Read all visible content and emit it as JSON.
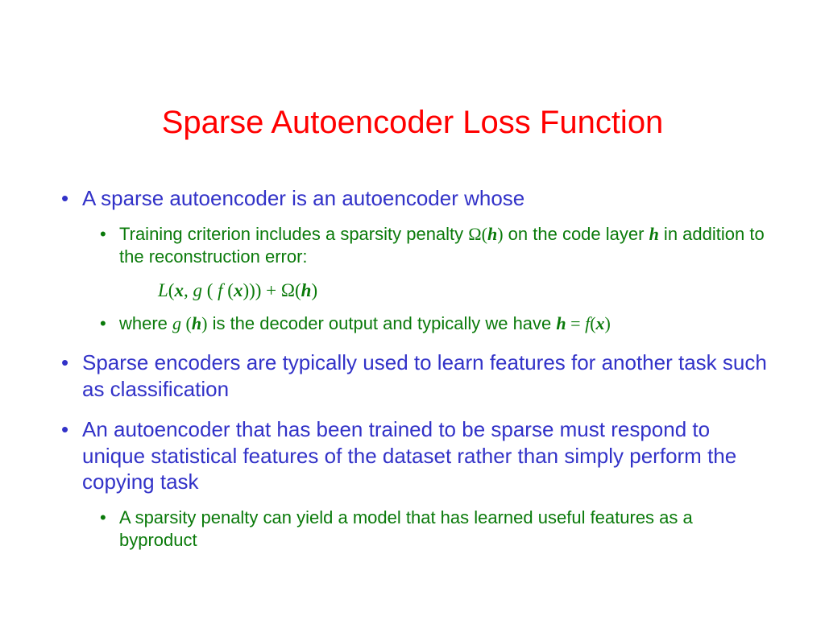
{
  "colors": {
    "title": "#ff0000",
    "blue": "#3232c8",
    "green": "#0a7a0a",
    "formula": "#0a7a0a"
  },
  "title_fontsize": 40,
  "bullet_fontsize": 26,
  "sub_bullet_fontsize": 22,
  "title": "Sparse Autoencoder Loss Function",
  "b1": {
    "text": "A sparse autoencoder is an autoencoder whose",
    "sub1_a": "Training criterion includes a sparsity penalty ",
    "sub1_omega": "Ω(",
    "sub1_h": "h",
    "sub1_close": ")",
    "sub1_b": " on the code layer ",
    "sub1_h2": "h",
    "sub1_c": " in addition to the reconstruction error:",
    "formula_L": "L",
    "formula_open": "(",
    "formula_x1": "x",
    "formula_comma": ", ",
    "formula_g": "g ",
    "formula_p1": "( ",
    "formula_f": "f ",
    "formula_p2": "(",
    "formula_x2": "x",
    "formula_p3": "))) + Ω(",
    "formula_h": "h",
    "formula_p4": ")",
    "sub2_a": "where ",
    "sub2_g": "g ",
    "sub2_ph": "(",
    "sub2_h": "h",
    "sub2_pc": ")",
    "sub2_b": " is the decoder output and typically we have ",
    "sub2_h2": "h",
    "sub2_eq": " = ",
    "sub2_f": "f",
    "sub2_px": "(",
    "sub2_x": "x",
    "sub2_pxc": ")"
  },
  "b2": "Sparse encoders are typically used to learn features for another task such as classification",
  "b3": {
    "text": "An autoencoder that has been trained to be sparse must respond to unique statistical features of the dataset rather than simply perform the copying task",
    "sub1": "A sparsity penalty can yield a model that has learned useful features  as a byproduct"
  }
}
